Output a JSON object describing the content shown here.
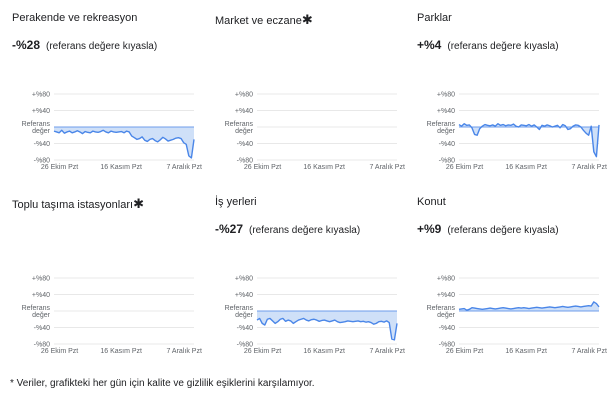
{
  "reference_label": "(referans değere kıyasla)",
  "footnote": "*  Veriler, grafikteki her gün için kalite ve gizlilik eşiklerini karşılamıyor.",
  "colors": {
    "line": "#4a86e8",
    "fill": "#cfe0f8",
    "grid": "#e0e0e0"
  },
  "chart_data": [
    {
      "type": "area",
      "title": "Perakende ve rekreasyon",
      "value": "-%28",
      "has_data": true,
      "y_ticks": [
        "+%80",
        "+%40",
        "Referans değer",
        "-%40",
        "-%80"
      ],
      "x_ticks": [
        "26 Ekim Pzt",
        "16 Kasım Pzt",
        "7 Aralık Pzt"
      ],
      "ylim": [
        -80,
        80
      ],
      "values": [
        -10,
        -12,
        -14,
        -8,
        -15,
        -12,
        -10,
        -14,
        -12,
        -9,
        -12,
        -16,
        -11,
        -13,
        -14,
        -10,
        -12,
        -13,
        -11,
        -8,
        -12,
        -14,
        -10,
        -12,
        -13,
        -12,
        -11,
        -14,
        -10,
        -12,
        -22,
        -26,
        -30,
        -28,
        -24,
        -32,
        -35,
        -30,
        -28,
        -33,
        -36,
        -31,
        -25,
        -29,
        -34,
        -32,
        -30,
        -27,
        -26,
        -28,
        -38,
        -42,
        -70,
        -75,
        -30
      ]
    },
    {
      "type": "area",
      "title": "Market ve eczane",
      "title_marker": "✱",
      "value": "",
      "has_data": false,
      "y_ticks": [
        "+%80",
        "+%40",
        "Referans değer",
        "-%40",
        "-%80"
      ],
      "x_ticks": [
        "26 Ekim Pzt",
        "16 Kasım Pzt",
        "7 Aralık Pzt"
      ],
      "ylim": [
        -80,
        80
      ],
      "values": []
    },
    {
      "type": "area",
      "title": "Parklar",
      "value": "+%4",
      "has_data": true,
      "y_ticks": [
        "+%80",
        "+%40",
        "Referans değer",
        "-%40",
        "-%80"
      ],
      "x_ticks": [
        "26 Ekim Pzt",
        "16 Kasım Pzt",
        "7 Aralık Pzt"
      ],
      "ylim": [
        -80,
        80
      ],
      "values": [
        6,
        2,
        8,
        4,
        5,
        -2,
        -18,
        -20,
        -4,
        2,
        6,
        4,
        3,
        5,
        2,
        8,
        4,
        6,
        3,
        5,
        4,
        7,
        2,
        0,
        5,
        4,
        3,
        6,
        2,
        5,
        0,
        -6,
        4,
        2,
        5,
        3,
        0,
        2,
        4,
        -2,
        6,
        3,
        -6,
        -4,
        2,
        5,
        4,
        0,
        -8,
        -15,
        -20,
        2,
        -60,
        -72,
        5
      ]
    },
    {
      "type": "area",
      "title": "Toplu taşıma istasyonları",
      "title_marker": "✱",
      "value": "",
      "has_data": false,
      "y_ticks": [
        "+%80",
        "+%40",
        "Referans değer",
        "-%40",
        "-%80"
      ],
      "x_ticks": [
        "26 Ekim Pzt",
        "16 Kasım Pzt",
        "7 Aralık Pzt"
      ],
      "ylim": [
        -80,
        80
      ],
      "values": []
    },
    {
      "type": "area",
      "title": "İş yerleri",
      "value": "-%27",
      "has_data": true,
      "y_ticks": [
        "+%80",
        "+%40",
        "Referans değer",
        "-%40",
        "-%80"
      ],
      "x_ticks": [
        "26 Ekim Pzt",
        "16 Kasım Pzt",
        "7 Aralık Pzt"
      ],
      "ylim": [
        -80,
        80
      ],
      "values": [
        -22,
        -18,
        -30,
        -34,
        -20,
        -18,
        -24,
        -30,
        -26,
        -20,
        -18,
        -25,
        -22,
        -24,
        -30,
        -26,
        -22,
        -20,
        -18,
        -22,
        -24,
        -21,
        -20,
        -22,
        -25,
        -23,
        -22,
        -24,
        -26,
        -24,
        -22,
        -26,
        -28,
        -27,
        -26,
        -24,
        -25,
        -26,
        -25,
        -24,
        -26,
        -25,
        -27,
        -26,
        -28,
        -32,
        -30,
        -26,
        -25,
        -27,
        -24,
        -28,
        -68,
        -70,
        -30
      ]
    },
    {
      "type": "area",
      "title": "Konut",
      "value": "+%9",
      "has_data": true,
      "y_ticks": [
        "+%80",
        "+%40",
        "Referans değer",
        "-%40",
        "-%80"
      ],
      "x_ticks": [
        "26 Ekim Pzt",
        "16 Kasım Pzt",
        "7 Aralık Pzt"
      ],
      "ylim": [
        -80,
        80
      ],
      "values": [
        4,
        5,
        6,
        2,
        4,
        8,
        7,
        6,
        5,
        4,
        5,
        6,
        7,
        6,
        5,
        6,
        7,
        8,
        7,
        6,
        5,
        6,
        7,
        8,
        7,
        8,
        7,
        6,
        7,
        8,
        9,
        8,
        7,
        8,
        9,
        10,
        9,
        8,
        9,
        10,
        11,
        10,
        9,
        10,
        11,
        12,
        11,
        10,
        11,
        12,
        13,
        12,
        22,
        18,
        10
      ]
    }
  ]
}
